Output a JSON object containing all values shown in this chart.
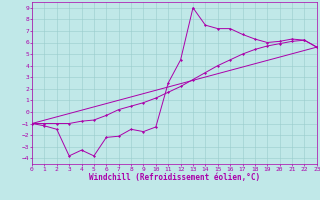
{
  "xlabel": "Windchill (Refroidissement éolien,°C)",
  "xlim": [
    0,
    23
  ],
  "ylim": [
    -4.5,
    9.5
  ],
  "xticks": [
    0,
    1,
    2,
    3,
    4,
    5,
    6,
    7,
    8,
    9,
    10,
    11,
    12,
    13,
    14,
    15,
    16,
    17,
    18,
    19,
    20,
    21,
    22,
    23
  ],
  "yticks": [
    -4,
    -3,
    -2,
    -1,
    0,
    1,
    2,
    3,
    4,
    5,
    6,
    7,
    8,
    9
  ],
  "bg_color": "#c0e8e8",
  "line_color": "#aa00aa",
  "grid_color": "#99cccc",
  "line1_x": [
    0,
    1,
    2,
    3,
    4,
    5,
    6,
    7,
    8,
    9,
    10,
    11,
    12,
    13,
    14,
    15,
    16,
    17,
    18,
    19,
    20,
    21,
    22,
    23
  ],
  "line1_y": [
    -1,
    -1.2,
    -1.5,
    -3.8,
    -3.3,
    -3.8,
    -2.2,
    -2.1,
    -1.5,
    -1.7,
    -1.3,
    2.5,
    4.5,
    9.0,
    7.5,
    7.2,
    7.2,
    6.7,
    6.3,
    6.0,
    6.1,
    6.3,
    6.2,
    5.6
  ],
  "line2_x": [
    0,
    1,
    2,
    3,
    4,
    5,
    6,
    7,
    8,
    9,
    10,
    11,
    12,
    13,
    14,
    15,
    16,
    17,
    18,
    19,
    20,
    21,
    22,
    23
  ],
  "line2_y": [
    -1,
    -1.0,
    -1.0,
    -1.0,
    -0.8,
    -0.7,
    -0.3,
    0.2,
    0.5,
    0.8,
    1.2,
    1.7,
    2.2,
    2.8,
    3.4,
    4.0,
    4.5,
    5.0,
    5.4,
    5.7,
    5.9,
    6.1,
    6.2,
    5.6
  ],
  "line3_x": [
    0,
    23
  ],
  "line3_y": [
    -1,
    5.6
  ],
  "marker": "D",
  "marker_size": 1.5,
  "linewidth": 0.7,
  "tick_fontsize": 4.5,
  "xlabel_fontsize": 5.5
}
